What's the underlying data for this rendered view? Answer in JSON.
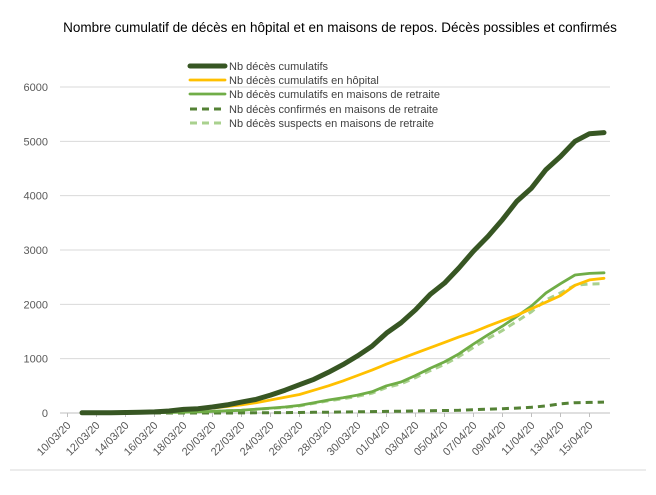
{
  "chart_data": {
    "type": "line",
    "title": "Nombre cumulatif de décès en hôpital et en maisons de repos. Décès possibles et confirmés",
    "xlabel": "",
    "ylabel": "",
    "ylim": [
      0,
      6000
    ],
    "yticks": [
      "0",
      "1000",
      "2000",
      "3000",
      "4000",
      "5000",
      "6000"
    ],
    "ytick_values": [
      0,
      1000,
      2000,
      3000,
      4000,
      5000,
      6000
    ],
    "xtick_labels": [
      "10/03/20",
      "12/03/20",
      "14/03/20",
      "16/03/20",
      "18/03/20",
      "20/03/20",
      "22/03/20",
      "24/03/20",
      "26/03/20",
      "28/03/20",
      "30/03/20",
      "01/04/20",
      "03/04/20",
      "05/04/20",
      "07/04/20",
      "09/04/20",
      "11/04/20",
      "13/04/20",
      "15/04/20"
    ],
    "x": [
      "11/03/20",
      "12/03/20",
      "13/03/20",
      "14/03/20",
      "15/03/20",
      "16/03/20",
      "17/03/20",
      "18/03/20",
      "19/03/20",
      "20/03/20",
      "21/03/20",
      "22/03/20",
      "23/03/20",
      "24/03/20",
      "25/03/20",
      "26/03/20",
      "27/03/20",
      "28/03/20",
      "29/03/20",
      "30/03/20",
      "31/03/20",
      "01/04/20",
      "02/04/20",
      "03/04/20",
      "04/04/20",
      "05/04/20",
      "06/04/20",
      "07/04/20",
      "08/04/20",
      "09/04/20",
      "10/04/20",
      "11/04/20",
      "12/04/20",
      "13/04/20",
      "14/04/20",
      "15/04/20",
      "16/04/20"
    ],
    "grid": true,
    "legend_position": "top-center",
    "series": [
      {
        "name": "Nb décès cumulatifs",
        "color": "#375623",
        "style": "solid-thick",
        "values": [
          3,
          4,
          6,
          10,
          14,
          21,
          37,
          67,
          80,
          110,
          150,
          200,
          250,
          330,
          420,
          520,
          620,
          750,
          890,
          1050,
          1230,
          1470,
          1660,
          1900,
          2180,
          2390,
          2670,
          2980,
          3250,
          3560,
          3900,
          4140,
          4480,
          4720,
          5000,
          5140,
          5160
        ]
      },
      {
        "name": "Nb décès cumulatifs en hôpital",
        "color": "#FFC000",
        "style": "solid",
        "values": [
          3,
          4,
          5,
          10,
          14,
          21,
          37,
          60,
          70,
          90,
          120,
          150,
          190,
          240,
          290,
          340,
          420,
          500,
          590,
          690,
          790,
          900,
          1000,
          1100,
          1200,
          1300,
          1400,
          1490,
          1600,
          1700,
          1800,
          1920,
          2040,
          2160,
          2350,
          2450,
          2480
        ]
      },
      {
        "name": "Nb décès cumulatifs en maisons de retraite",
        "color": "#70AD47",
        "style": "solid",
        "values": [
          0,
          0,
          0,
          0,
          0,
          5,
          10,
          15,
          20,
          30,
          40,
          50,
          70,
          90,
          110,
          140,
          190,
          240,
          280,
          330,
          390,
          500,
          570,
          690,
          820,
          940,
          1090,
          1270,
          1440,
          1600,
          1780,
          1970,
          2210,
          2380,
          2540,
          2570,
          2580
        ]
      },
      {
        "name": "Nb décès confirmés en maisons de retraite",
        "color": "#548235",
        "style": "dashed",
        "values": [
          0,
          0,
          0,
          0,
          0,
          0,
          0,
          0,
          0,
          0,
          0,
          2,
          4,
          6,
          8,
          10,
          12,
          15,
          18,
          22,
          26,
          30,
          34,
          38,
          42,
          46,
          50,
          60,
          70,
          80,
          90,
          105,
          130,
          170,
          190,
          195,
          200
        ]
      },
      {
        "name": "Nb décès suspects en maisons de retraite",
        "color": "#A9D18E",
        "style": "dashed",
        "values": [
          0,
          0,
          0,
          0,
          0,
          5,
          10,
          15,
          20,
          30,
          40,
          48,
          66,
          84,
          102,
          130,
          178,
          225,
          262,
          308,
          364,
          470,
          536,
          652,
          778,
          894,
          1040,
          1210,
          1370,
          1520,
          1690,
          1865,
          2080,
          2210,
          2350,
          2375,
          2380
        ]
      }
    ]
  }
}
